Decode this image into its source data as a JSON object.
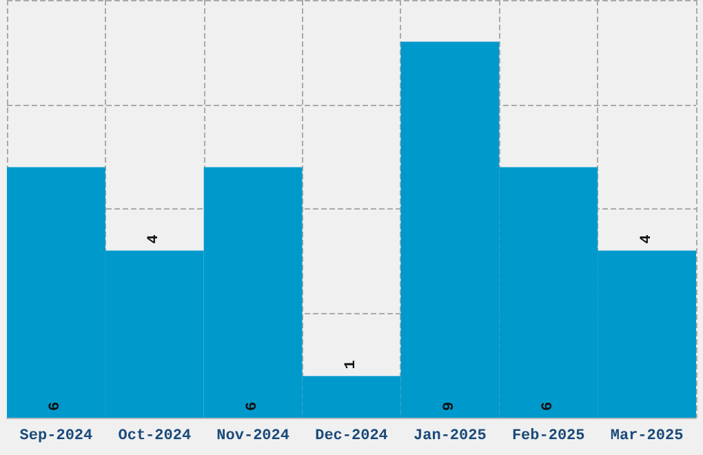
{
  "chart_data": {
    "type": "bar",
    "categories": [
      "Sep-2024",
      "Oct-2024",
      "Nov-2024",
      "Dec-2024",
      "Jan-2025",
      "Feb-2025",
      "Mar-2025"
    ],
    "values": [
      6,
      4,
      6,
      1,
      9,
      6,
      4
    ],
    "color": "#0099cc",
    "ylim": [
      0,
      10
    ],
    "yticks": [
      {
        "value": 0,
        "label": null
      },
      {
        "value": 2.5,
        "label": null
      },
      {
        "value": 5,
        "label": null
      },
      {
        "value": 7.5,
        "label": null
      },
      {
        "value": 10,
        "label": null
      }
    ],
    "grid": true,
    "tick_labels": "x",
    "data_labels": true
  }
}
